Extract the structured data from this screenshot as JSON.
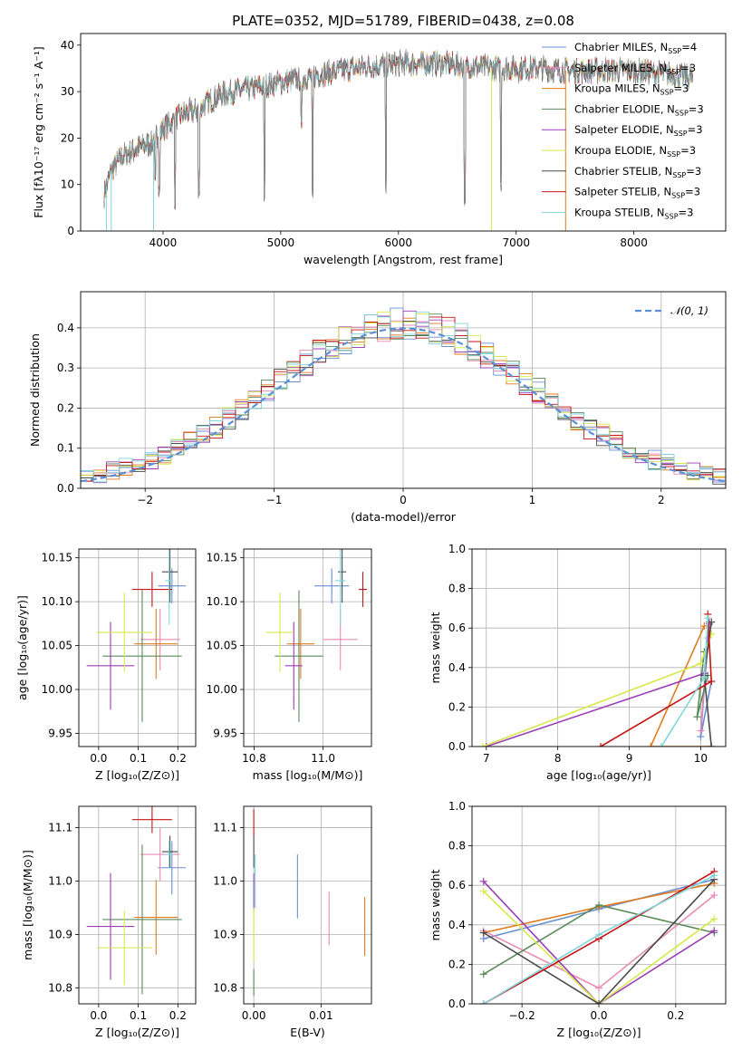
{
  "colors": {
    "chabrier_miles": "#6a8fd0",
    "salpeter_miles": "#e88ab4",
    "kroupa_miles": "#e07b1f",
    "chabrier_elodie": "#5a8a5a",
    "salpeter_elodie": "#9b3db5",
    "kroupa_elodie": "#d7e84a",
    "chabrier_stelib": "#4a4a4a",
    "salpeter_stelib": "#c81414",
    "kroupa_stelib": "#7fd6dc",
    "normal": "#5b8fd8",
    "grid": "#b0b0b0"
  },
  "chart_data": [
    {
      "id": "spectrum",
      "type": "line",
      "title": "PLATE=0352, MJD=51789, FIBERID=0438, z=0.08",
      "xlabel": "wavelength [Angstrom, rest frame]",
      "ylabel": "Flux [fλ10⁻¹⁷ erg cm⁻² s⁻¹ A⁻¹]",
      "xlim": [
        3300,
        8780
      ],
      "ylim": [
        0,
        42.5
      ],
      "xticks": [
        "4000",
        "5000",
        "6000",
        "7000",
        "8000"
      ],
      "yticks": [
        "0",
        "10",
        "20",
        "30",
        "40"
      ],
      "grid": false,
      "legend": "top-right",
      "continuum": [
        [
          3500,
          8
        ],
        [
          3560,
          13
        ],
        [
          3650,
          16
        ],
        [
          3800,
          18
        ],
        [
          3900,
          19
        ],
        [
          4000,
          22
        ],
        [
          4100,
          24
        ],
        [
          4200,
          25.5
        ],
        [
          4300,
          26
        ],
        [
          4400,
          28
        ],
        [
          4500,
          29.5
        ],
        [
          4600,
          30
        ],
        [
          4800,
          31
        ],
        [
          5000,
          32
        ],
        [
          5200,
          33
        ],
        [
          5400,
          34
        ],
        [
          5600,
          35
        ],
        [
          5800,
          35.5
        ],
        [
          6000,
          36
        ],
        [
          6200,
          36
        ],
        [
          6400,
          36
        ],
        [
          6600,
          35.5
        ],
        [
          6800,
          35
        ],
        [
          7000,
          35
        ],
        [
          7200,
          35
        ],
        [
          7400,
          34.5
        ],
        [
          7600,
          34.5
        ],
        [
          7800,
          34.5
        ],
        [
          8000,
          34.5
        ],
        [
          8200,
          34
        ],
        [
          8400,
          33.5
        ],
        [
          8500,
          33
        ]
      ],
      "absorption": [
        [
          3934,
          9
        ],
        [
          3969,
          8
        ],
        [
          4102,
          5
        ],
        [
          4304,
          6
        ],
        [
          4861,
          6
        ],
        [
          5175,
          22
        ],
        [
          5270,
          6
        ],
        [
          5893,
          8
        ],
        [
          6563,
          4
        ],
        [
          6870,
          8
        ]
      ],
      "drops": [
        [
          3520,
          0
        ],
        [
          3560,
          0
        ],
        [
          3920,
          0
        ],
        [
          6790,
          0
        ],
        [
          7420,
          0
        ]
      ],
      "legend_entries": [
        {
          "label": "Chabrier MILES, N",
          "sub": "SSP",
          "tail": "=4",
          "color": "chabrier_miles"
        },
        {
          "label": "Salpeter MILES, N",
          "sub": "SSP",
          "tail": "=3",
          "color": "salpeter_miles"
        },
        {
          "label": "Kroupa MILES, N",
          "sub": "SSP",
          "tail": "=3",
          "color": "kroupa_miles"
        },
        {
          "label": "Chabrier ELODIE, N",
          "sub": "SSP",
          "tail": "=3",
          "color": "chabrier_elodie"
        },
        {
          "label": "Salpeter ELODIE, N",
          "sub": "SSP",
          "tail": "=3",
          "color": "salpeter_elodie"
        },
        {
          "label": "Kroupa ELODIE, N",
          "sub": "SSP",
          "tail": "=3",
          "color": "kroupa_elodie"
        },
        {
          "label": "Chabrier STELIB, N",
          "sub": "SSP",
          "tail": "=3",
          "color": "chabrier_stelib"
        },
        {
          "label": "Salpeter STELIB, N",
          "sub": "SSP",
          "tail": "=3",
          "color": "salpeter_stelib"
        },
        {
          "label": "Kroupa STELIB, N",
          "sub": "SSP",
          "tail": "=3",
          "color": "kroupa_stelib"
        }
      ]
    },
    {
      "id": "residuals",
      "type": "histogram",
      "xlabel": "(data-model)/error",
      "ylabel": "Normed distribution",
      "xlim": [
        -2.5,
        2.5
      ],
      "ylim": [
        0,
        0.49
      ],
      "xticks": [
        "−2",
        "−1",
        "0",
        "1",
        "2"
      ],
      "yticks": [
        "0.0",
        "0.1",
        "0.2",
        "0.3",
        "0.4"
      ],
      "grid": true,
      "legend": "top-right",
      "legend_label": "𝒩(0, 1)",
      "bin_width": 0.1
    },
    {
      "id": "age_vs_Z",
      "type": "errorbar",
      "xlabel": "Z [log₁₀(Z/Z⊙)]",
      "ylabel": "age  [log₁₀(age/yr)]",
      "xlim": [
        -0.05,
        0.245
      ],
      "ylim": [
        9.935,
        10.16
      ],
      "xticks": [
        "0.0",
        "0.1",
        "0.2"
      ],
      "yticks": [
        "9.95",
        "10.00",
        "10.05",
        "10.10",
        "10.15"
      ],
      "grid": true,
      "points": [
        {
          "c": "chabrier_miles",
          "x": 0.185,
          "y": 10.118,
          "xe": 0.035,
          "ye": 0.02
        },
        {
          "c": "salpeter_miles",
          "x": 0.155,
          "y": 10.057,
          "xe": 0.05,
          "ye": 0.035
        },
        {
          "c": "kroupa_miles",
          "x": 0.145,
          "y": 10.052,
          "xe": 0.055,
          "ye": 0.04
        },
        {
          "c": "chabrier_elodie",
          "x": 0.11,
          "y": 10.038,
          "xe": 0.1,
          "ye": 0.075
        },
        {
          "c": "salpeter_elodie",
          "x": 0.03,
          "y": 10.027,
          "xe": 0.06,
          "ye": 0.05
        },
        {
          "c": "kroupa_elodie",
          "x": 0.065,
          "y": 10.065,
          "xe": 0.07,
          "ye": 0.045
        },
        {
          "c": "chabrier_stelib",
          "x": 0.18,
          "y": 10.134,
          "xe": 0.02,
          "ye": 0.035
        },
        {
          "c": "salpeter_stelib",
          "x": 0.135,
          "y": 10.114,
          "xe": 0.05,
          "ye": 0.02
        },
        {
          "c": "kroupa_stelib",
          "x": 0.178,
          "y": 10.124,
          "xe": 0.01,
          "ye": 0.05
        }
      ]
    },
    {
      "id": "age_vs_mass",
      "type": "errorbar",
      "xlabel": "mass [log₁₀(M/M⊙)]",
      "ylabel": "",
      "xlim": [
        10.77,
        11.14
      ],
      "ylim": [
        9.935,
        10.16
      ],
      "xticks": [
        "10.8",
        "11.0"
      ],
      "yticks": [
        "9.95",
        "10.00",
        "10.05",
        "10.10",
        "10.15"
      ],
      "grid": true,
      "points": [
        {
          "c": "chabrier_miles",
          "x": 11.025,
          "y": 10.118,
          "xe": 0.05,
          "ye": 0.02
        },
        {
          "c": "salpeter_miles",
          "x": 11.05,
          "y": 10.057,
          "xe": 0.05,
          "ye": 0.035
        },
        {
          "c": "kroupa_miles",
          "x": 10.935,
          "y": 10.052,
          "xe": 0.04,
          "ye": 0.04
        },
        {
          "c": "chabrier_elodie",
          "x": 10.93,
          "y": 10.038,
          "xe": 0.07,
          "ye": 0.075
        },
        {
          "c": "salpeter_elodie",
          "x": 10.915,
          "y": 10.027,
          "xe": 0.025,
          "ye": 0.05
        },
        {
          "c": "kroupa_elodie",
          "x": 10.875,
          "y": 10.065,
          "xe": 0.04,
          "ye": 0.045
        },
        {
          "c": "chabrier_stelib",
          "x": 11.055,
          "y": 10.134,
          "xe": 0.012,
          "ye": 0.035
        },
        {
          "c": "salpeter_stelib",
          "x": 11.115,
          "y": 10.114,
          "xe": 0.012,
          "ye": 0.02
        },
        {
          "c": "kroupa_stelib",
          "x": 11.05,
          "y": 10.124,
          "xe": 0.015,
          "ye": 0.05
        }
      ]
    },
    {
      "id": "weight_vs_age",
      "type": "line",
      "xlabel": "age  [log₁₀(age/yr)]",
      "ylabel": "mass weight",
      "xlim": [
        6.8,
        10.35
      ],
      "ylim": [
        0,
        1
      ],
      "xticks": [
        "7",
        "8",
        "9",
        "10"
      ],
      "yticks": [
        "0.0",
        "0.2",
        "0.4",
        "0.6",
        "0.8",
        "1.0"
      ],
      "grid": true,
      "series": [
        {
          "c": "chabrier_miles",
          "x": [
            10.12,
            10.0,
            10.15
          ],
          "y": [
            0.63,
            0.05,
            0.33
          ]
        },
        {
          "c": "salpeter_miles",
          "x": [
            10.06,
            10.0,
            10.1
          ],
          "y": [
            0.35,
            0.08,
            0.55
          ]
        },
        {
          "c": "kroupa_miles",
          "x": [
            10.15,
            9.3,
            10.05
          ],
          "y": [
            0.0,
            0.0,
            0.61
          ]
        },
        {
          "c": "chabrier_elodie",
          "x": [
            10.1,
            9.95,
            10.05
          ],
          "y": [
            0.36,
            0.15,
            0.48
          ]
        },
        {
          "c": "salpeter_elodie",
          "x": [
            7.0,
            10.05,
            10.12
          ],
          "y": [
            0.0,
            0.37,
            0.62
          ]
        },
        {
          "c": "kroupa_elodie",
          "x": [
            6.95,
            10.0,
            10.15
          ],
          "y": [
            0.0,
            0.42,
            0.57
          ]
        },
        {
          "c": "chabrier_stelib",
          "x": [
            10.15,
            10.05,
            10.15
          ],
          "y": [
            0.0,
            0.36,
            0.63
          ]
        },
        {
          "c": "salpeter_stelib",
          "x": [
            8.6,
            10.15,
            10.1
          ],
          "y": [
            0.0,
            0.33,
            0.67
          ]
        },
        {
          "c": "kroupa_stelib",
          "x": [
            9.45,
            10.05,
            10.1
          ],
          "y": [
            0.0,
            0.35,
            0.65
          ]
        }
      ]
    },
    {
      "id": "mass_vs_Z",
      "type": "errorbar",
      "xlabel": "Z [log₁₀(Z/Z⊙)]",
      "ylabel": "mass [log₁₀(M/M⊙)]",
      "xlim": [
        -0.05,
        0.245
      ],
      "ylim": [
        10.77,
        11.14
      ],
      "xticks": [
        "0.0",
        "0.1",
        "0.2"
      ],
      "yticks": [
        "10.8",
        "10.9",
        "11.0",
        "11.1"
      ],
      "grid": true,
      "points": [
        {
          "c": "chabrier_miles",
          "x": 0.185,
          "y": 11.025,
          "xe": 0.035,
          "ye": 0.05
        },
        {
          "c": "salpeter_miles",
          "x": 0.155,
          "y": 11.05,
          "xe": 0.05,
          "ye": 0.05
        },
        {
          "c": "kroupa_miles",
          "x": 0.145,
          "y": 10.932,
          "xe": 0.055,
          "ye": 0.07
        },
        {
          "c": "chabrier_elodie",
          "x": 0.11,
          "y": 10.928,
          "xe": 0.1,
          "ye": 0.14
        },
        {
          "c": "salpeter_elodie",
          "x": 0.03,
          "y": 10.915,
          "xe": 0.06,
          "ye": 0.1
        },
        {
          "c": "kroupa_elodie",
          "x": 0.065,
          "y": 10.875,
          "xe": 0.07,
          "ye": 0.07
        },
        {
          "c": "chabrier_stelib",
          "x": 0.18,
          "y": 11.055,
          "xe": 0.02,
          "ye": 0.03
        },
        {
          "c": "salpeter_stelib",
          "x": 0.135,
          "y": 11.115,
          "xe": 0.05,
          "ye": 0.025
        },
        {
          "c": "kroupa_stelib",
          "x": 0.178,
          "y": 11.05,
          "xe": 0.01,
          "ye": 0.025
        }
      ]
    },
    {
      "id": "mass_vs_ebv",
      "type": "errorbar",
      "xlabel": "E(B-V)",
      "ylabel": "",
      "xlim": [
        -0.0015,
        0.0175
      ],
      "ylim": [
        10.77,
        11.14
      ],
      "xticks": [
        "0.00",
        "0.01"
      ],
      "yticks": [
        "10.8",
        "10.9",
        "11.0",
        "11.1"
      ],
      "grid": true,
      "points": [
        {
          "c": "salpeter_stelib",
          "x": 0.0,
          "y": 11.11,
          "xe": 0,
          "ye": 0.025
        },
        {
          "c": "chabrier_stelib",
          "x": 0.0,
          "y": 11.055,
          "xe": 0,
          "ye": 0.03
        },
        {
          "c": "kroupa_stelib",
          "x": 0.0002,
          "y": 11.0,
          "xe": 0,
          "ye": 0.05
        },
        {
          "c": "salpeter_elodie",
          "x": 0.0,
          "y": 10.98,
          "xe": 0,
          "ye": 0.035
        },
        {
          "c": "kroupa_elodie",
          "x": 0.0,
          "y": 10.9,
          "xe": 0,
          "ye": 0.05
        },
        {
          "c": "chabrier_elodie",
          "x": 0.0,
          "y": 10.81,
          "xe": 0,
          "ye": 0.025
        },
        {
          "c": "chabrier_miles",
          "x": 0.0065,
          "y": 10.99,
          "xe": 0,
          "ye": 0.06
        },
        {
          "c": "salpeter_miles",
          "x": 0.0112,
          "y": 10.93,
          "xe": 0,
          "ye": 0.05
        },
        {
          "c": "kroupa_miles",
          "x": 0.0165,
          "y": 10.915,
          "xe": 0,
          "ye": 0.055
        }
      ]
    },
    {
      "id": "weight_vs_Z",
      "type": "line",
      "xlabel": "Z [log₁₀(Z/Z⊙)]",
      "ylabel": "mass weight",
      "xlim": [
        -0.33,
        0.33
      ],
      "ylim": [
        0,
        1
      ],
      "xticks": [
        "−0.2",
        "0.0",
        "0.2"
      ],
      "yticks": [
        "0.0",
        "0.2",
        "0.4",
        "0.6",
        "0.8",
        "1.0"
      ],
      "grid": true,
      "series": [
        {
          "c": "chabrier_miles",
          "x": [
            -0.3,
            0.0,
            0.3
          ],
          "y": [
            0.33,
            0.48,
            0.63
          ]
        },
        {
          "c": "salpeter_miles",
          "x": [
            -0.3,
            0.0,
            0.3
          ],
          "y": [
            0.37,
            0.08,
            0.55
          ]
        },
        {
          "c": "kroupa_miles",
          "x": [
            -0.3,
            0.0,
            0.3
          ],
          "y": [
            0.36,
            0.49,
            0.61
          ]
        },
        {
          "c": "chabrier_elodie",
          "x": [
            -0.3,
            0.0,
            0.3
          ],
          "y": [
            0.15,
            0.5,
            0.36
          ]
        },
        {
          "c": "salpeter_elodie",
          "x": [
            -0.3,
            0.0,
            0.3
          ],
          "y": [
            0.62,
            0.0,
            0.37
          ]
        },
        {
          "c": "kroupa_elodie",
          "x": [
            -0.3,
            0.0,
            0.3
          ],
          "y": [
            0.57,
            0.0,
            0.43
          ]
        },
        {
          "c": "chabrier_stelib",
          "x": [
            -0.3,
            0.0,
            0.3
          ],
          "y": [
            0.36,
            0.0,
            0.63
          ]
        },
        {
          "c": "salpeter_stelib",
          "x": [
            -0.3,
            0.0,
            0.3
          ],
          "y": [
            0.0,
            0.33,
            0.67
          ]
        },
        {
          "c": "kroupa_stelib",
          "x": [
            -0.3,
            0.0,
            0.3
          ],
          "y": [
            0.0,
            0.35,
            0.65
          ]
        }
      ]
    }
  ]
}
